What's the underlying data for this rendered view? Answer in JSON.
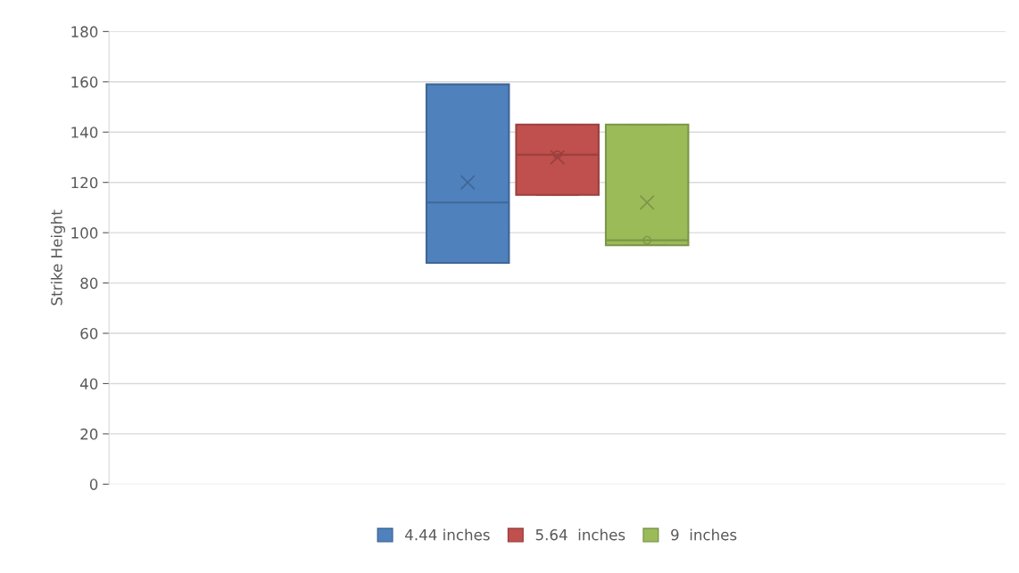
{
  "chart_data": {
    "type": "box",
    "ylabel": "Strike Height",
    "categories": [
      null
    ],
    "series": [
      {
        "name": "4.44 inches",
        "color": "#4f81bd",
        "boxes": [
          {
            "low": 88,
            "q1": 88,
            "median": 112,
            "q3": 159,
            "high": 159,
            "mean": 120
          }
        ]
      },
      {
        "name": "5.64  inches",
        "color": "#c0504d",
        "boxes": [
          {
            "low": 115,
            "q1": 115,
            "median": 131,
            "q3": 143,
            "high": 143,
            "mean": 130,
            "outliers": [
              131
            ]
          }
        ]
      },
      {
        "name": "9  inches",
        "color": "#9bbb59",
        "boxes": [
          {
            "low": 95,
            "q1": 95,
            "median": 97,
            "q3": 143,
            "high": 143,
            "mean": 112,
            "outliers": [
              97
            ]
          }
        ]
      }
    ],
    "ylim": [
      0,
      180
    ],
    "yticks": [
      0,
      20,
      40,
      60,
      80,
      100,
      120,
      140,
      160,
      180
    ],
    "grid": "y",
    "legend": "bottom"
  }
}
